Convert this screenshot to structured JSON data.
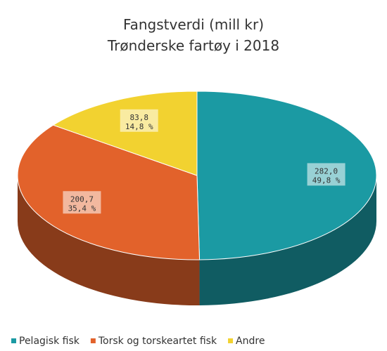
{
  "chart_data": {
    "type": "pie3d",
    "title": [
      "Fangstverdi (mill kr)",
      "Trønderske fartøy i 2018"
    ],
    "categories": [
      "Pelagisk fisk",
      "Torsk og torskeartet fisk",
      "Andre"
    ],
    "values": [
      282.0,
      200.7,
      83.8
    ],
    "value_labels": [
      "282,0",
      "200,7",
      "83,8"
    ],
    "percent_labels": [
      "49,8 %",
      "35,4 %",
      "14,8 %"
    ],
    "colors": [
      "#1b9aa3",
      "#e2622b",
      "#f2d230"
    ],
    "legend": "bottom"
  }
}
